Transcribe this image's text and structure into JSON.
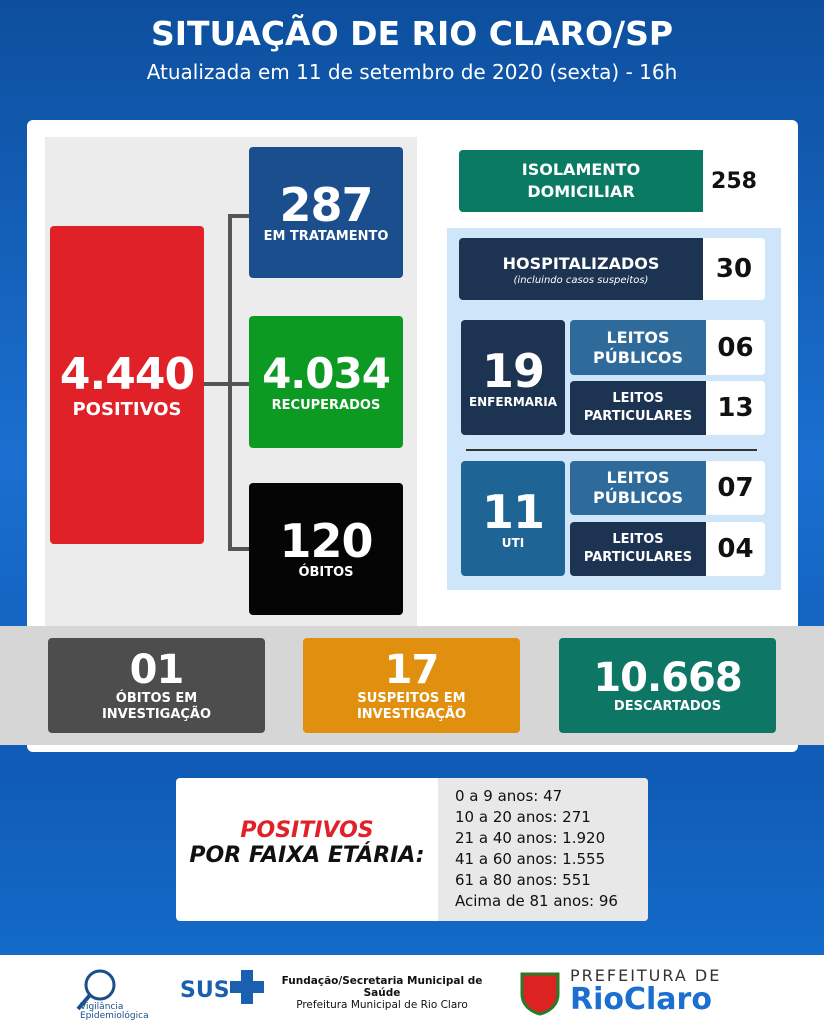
{
  "header": {
    "title": "SITUAÇÃO DE RIO CLARO/SP",
    "subtitle": "Atualizada em 11 de setembro de 2020 (sexta) - 16h"
  },
  "positivos": {
    "value": "4.440",
    "label": "POSITIVOS"
  },
  "breakdown": [
    {
      "value": "287",
      "label": "EM TRATAMENTO"
    },
    {
      "value": "4.034",
      "label": "RECUPERADOS"
    },
    {
      "value": "120",
      "label": "ÓBITOS"
    }
  ],
  "isolamento": {
    "label": "ISOLAMENTO DOMICILIAR",
    "value": "258"
  },
  "hospitalizados": {
    "label": "HOSPITALIZADOS",
    "note": "(incluindo casos suspeitos)",
    "value": "30"
  },
  "enfermaria": {
    "value": "19",
    "label": "ENFERMARIA",
    "leitos": [
      {
        "label": "LEITOS PÚBLICOS",
        "value": "06"
      },
      {
        "label": "LEITOS PARTICULARES",
        "value": "13"
      }
    ]
  },
  "uti": {
    "value": "11",
    "label": "UTI",
    "leitos": [
      {
        "label": "LEITOS PÚBLICOS",
        "value": "07"
      },
      {
        "label": "LEITOS PARTICULARES",
        "value": "04"
      }
    ]
  },
  "secondary": [
    {
      "value": "01",
      "label": "ÓBITOS EM INVESTIGAÇÃO"
    },
    {
      "value": "17",
      "label": "SUSPEITOS EM INVESTIGAÇÃO"
    },
    {
      "value": "10.668",
      "label": "DESCARTADOS"
    }
  ],
  "faixa_etaria": {
    "title": [
      "POSITIVOS",
      "POR FAIXA ETÁRIA:"
    ],
    "rows": [
      "0 a 9 anos: 47",
      "10 a 20 anos: 271",
      "21 a 40 anos: 1.920",
      "41 a 60 anos: 1.555",
      "61 a 80 anos: 551",
      "Acima de 81 anos: 96"
    ]
  },
  "footer": [
    "Vigilância Epidemiológica",
    "SUS",
    "Fundação/Secretaria Municipal de Saúde",
    "Prefeitura Municipal de Rio Claro",
    "PREFEITURA DE",
    "RioClaro"
  ]
}
